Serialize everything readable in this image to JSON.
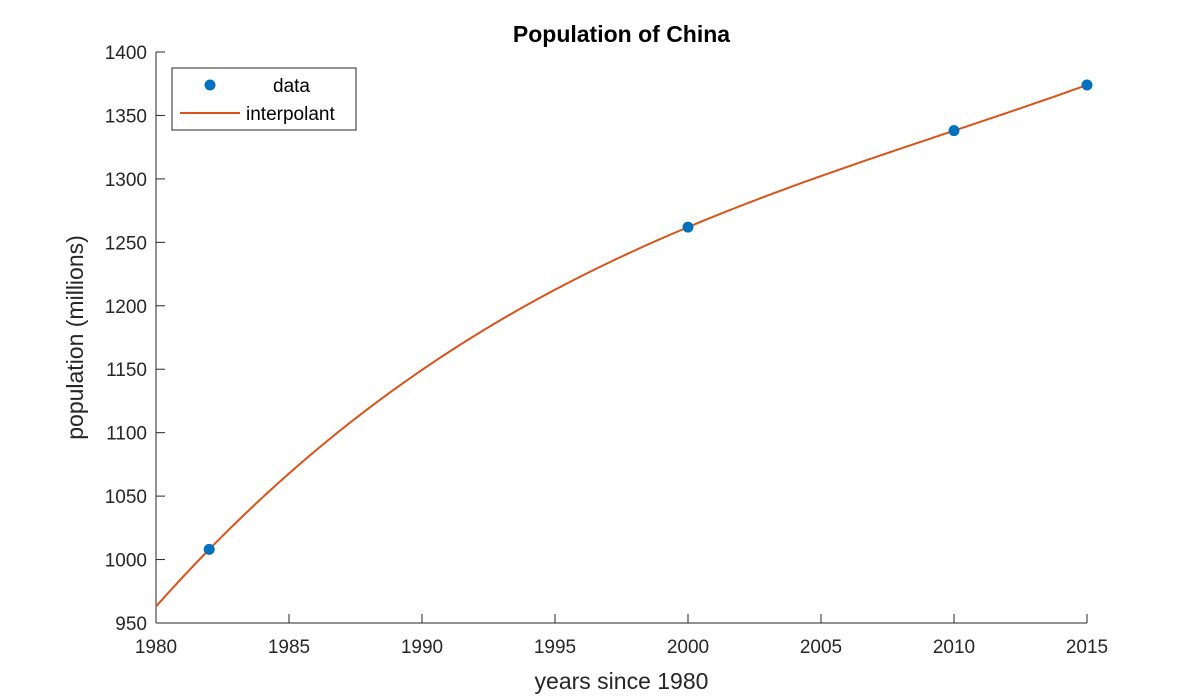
{
  "chart_data": {
    "type": "line",
    "title": "Population of China",
    "xlabel": "years since 1980",
    "ylabel": "population (millions)",
    "xlim": [
      1980,
      2015
    ],
    "ylim": [
      950,
      1400
    ],
    "xticks": [
      1980,
      1985,
      1990,
      1995,
      2000,
      2005,
      2010,
      2015
    ],
    "yticks": [
      950,
      1000,
      1050,
      1100,
      1150,
      1200,
      1250,
      1300,
      1350,
      1400
    ],
    "grid": false,
    "legend_location": "top-left",
    "series": [
      {
        "name": "data",
        "style": "markers",
        "color": "#0072BD",
        "x": [
          1982,
          2000,
          2010,
          2015
        ],
        "y": [
          1008,
          1262,
          1338,
          1374
        ]
      },
      {
        "name": "interpolant",
        "style": "line",
        "color": "#D95319",
        "interpolation": "polynomial",
        "interpolates_series": "data",
        "x_range": [
          1980,
          2015
        ]
      }
    ]
  }
}
